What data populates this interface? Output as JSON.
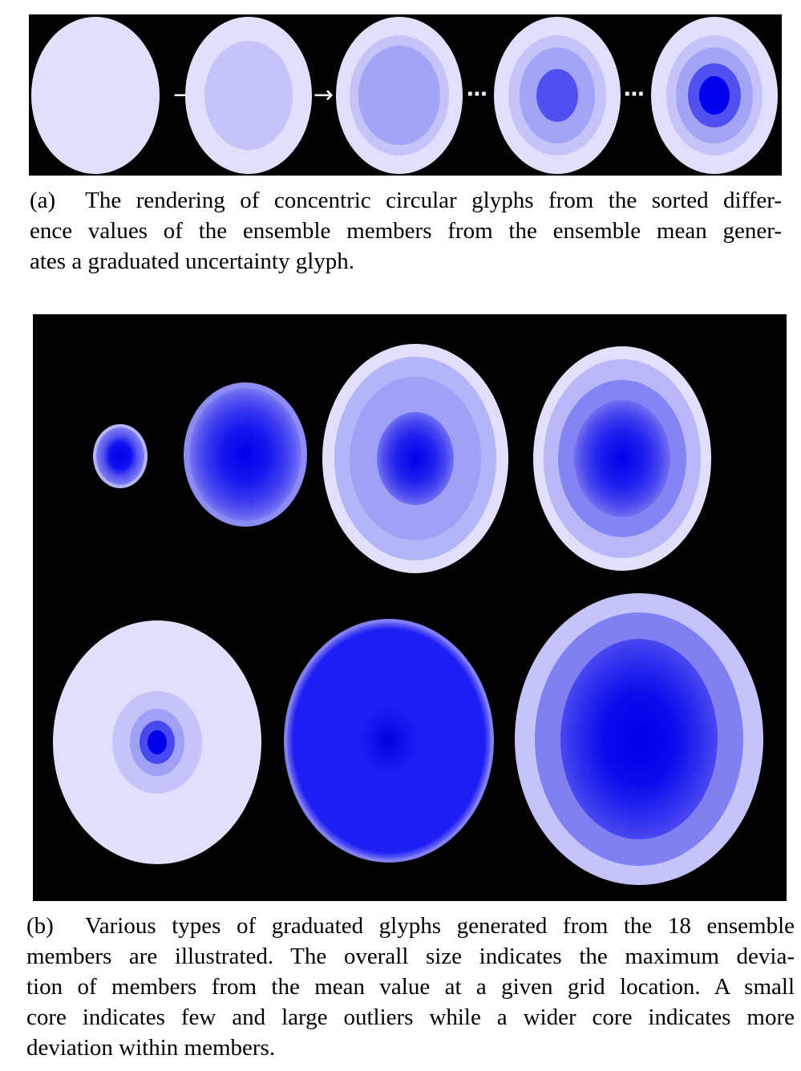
{
  "figure_a": {
    "connectors": [
      "→",
      "→",
      "⋯",
      "⋯"
    ],
    "caption": {
      "label": "(a)",
      "lines": [
        "The rendering of concentric circular glyphs from the sorted differ-",
        "ence values of the ensemble members from the ensemble mean gener-",
        "ates a graduated uncertainty glyph."
      ]
    }
  },
  "figure_b": {
    "caption": {
      "label": "(b)",
      "lines": [
        "Various types of graduated glyphs generated from the 18 ensemble",
        "members are illustrated. The overall size indicates the maximum devia-",
        "tion of members from the mean value at a given grid location. A small",
        "core indicates few and large outliers while a wider core indicates more",
        "deviation within members."
      ]
    }
  },
  "colors": {
    "background": "#000000",
    "lightest_ring": "#e0e0fc",
    "light_ring": "#c4c4fa",
    "mid_ring": "#a4a4f6",
    "dark_ring": "#5050f0",
    "core": "#0000f0"
  }
}
